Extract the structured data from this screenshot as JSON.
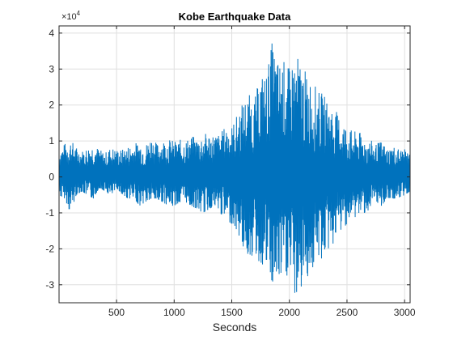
{
  "figure": {
    "title": "Kobe Earthquake Data",
    "xlabel": "Seconds",
    "ylabel": "",
    "y_multiplier": "×10",
    "y_multiplier_exp": "4"
  },
  "colors": {
    "line": "#0072bd",
    "grid": "#dfdfdf",
    "axes": "#262626",
    "background": "#ffffff"
  },
  "chart_data": {
    "type": "line",
    "title": "Kobe Earthquake Data",
    "xlabel": "Seconds",
    "ylabel": "",
    "y_scale_factor": 10000,
    "xlim": [
      1,
      3048
    ],
    "ylim": [
      -3.5,
      4.2
    ],
    "x_ticks": [
      500,
      1000,
      1500,
      2000,
      2500,
      3000
    ],
    "x_tick_labels": [
      "500",
      "1000",
      "1500",
      "2000",
      "2500",
      "3000"
    ],
    "y_ticks": [
      -3,
      -2,
      -1,
      0,
      1,
      2,
      3,
      4
    ],
    "y_tick_labels": [
      "-3",
      "-2",
      "-1",
      "0",
      "1",
      "2",
      "3",
      "4"
    ],
    "grid": true,
    "legend": "none",
    "series": [
      {
        "x": [
          1,
          50,
          100,
          150,
          200,
          250,
          300,
          350,
          400,
          450,
          500,
          550,
          600,
          650,
          700,
          750,
          800,
          850,
          900,
          950,
          1000,
          1050,
          1100,
          1150,
          1200,
          1250,
          1300,
          1350,
          1400,
          1450,
          1500,
          1550,
          1600,
          1650,
          1700,
          1750,
          1800,
          1850,
          1900,
          1950,
          2000,
          2050,
          2100,
          2150,
          2200,
          2250,
          2300,
          2350,
          2400,
          2450,
          2500,
          2550,
          2600,
          2650,
          2700,
          2750,
          2800,
          2850,
          2900,
          2950,
          3000,
          3048
        ],
        "y_min": [
          -0.5,
          -0.6,
          -1.0,
          -0.5,
          -0.4,
          -0.5,
          -0.6,
          -0.3,
          -0.4,
          -0.5,
          -0.3,
          -0.5,
          -0.6,
          -0.6,
          -0.8,
          -0.7,
          -0.6,
          -0.6,
          -0.7,
          -0.8,
          -0.8,
          -0.7,
          -0.7,
          -0.8,
          -0.9,
          -1.0,
          -0.9,
          -0.8,
          -1.0,
          -1.2,
          -1.3,
          -1.5,
          -2.0,
          -2.3,
          -2.2,
          -2.4,
          -2.5,
          -2.9,
          -3.0,
          -2.8,
          -2.7,
          -3.4,
          -3.3,
          -2.8,
          -2.7,
          -2.4,
          -2.3,
          -2.0,
          -1.8,
          -1.5,
          -1.3,
          -1.2,
          -1.0,
          -1.0,
          -0.9,
          -0.8,
          -0.8,
          -0.6,
          -0.6,
          -0.6,
          -0.5,
          -0.4
        ],
        "y_max": [
          0.9,
          1.1,
          1.1,
          1.0,
          0.9,
          1.0,
          1.1,
          1.0,
          0.8,
          1.0,
          1.0,
          0.9,
          1.0,
          1.1,
          1.1,
          1.0,
          1.4,
          1.1,
          1.2,
          1.2,
          1.1,
          1.2,
          1.2,
          1.3,
          1.2,
          1.3,
          1.4,
          1.4,
          1.3,
          1.6,
          1.5,
          1.9,
          2.2,
          2.3,
          2.2,
          3.1,
          3.1,
          4.2,
          3.4,
          3.5,
          3.2,
          3.5,
          3.2,
          2.9,
          2.7,
          2.4,
          2.3,
          2.1,
          1.9,
          1.7,
          1.5,
          1.3,
          1.4,
          1.2,
          1.1,
          1.0,
          1.1,
          0.9,
          1.0,
          0.9,
          0.9,
          0.8
        ]
      }
    ]
  }
}
